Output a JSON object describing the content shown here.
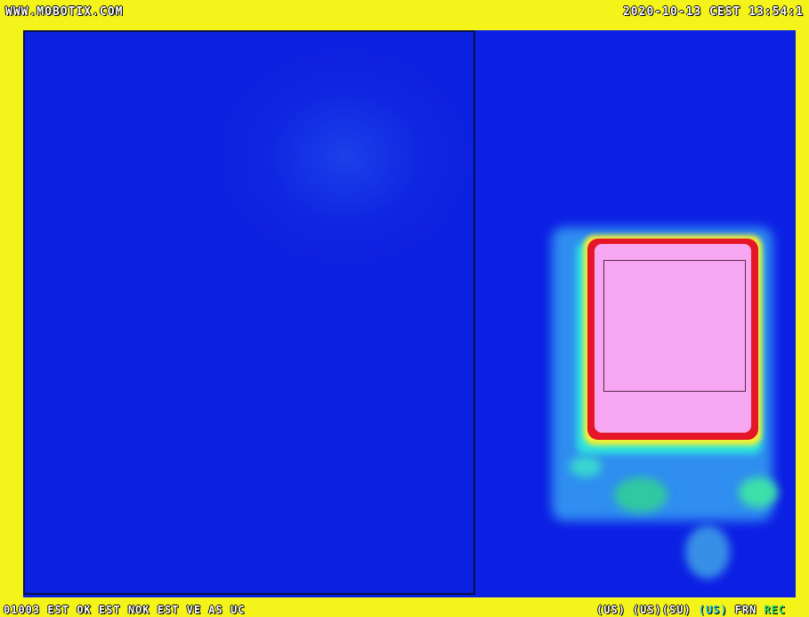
{
  "overlay": {
    "brand_url": "WWW.MOBOTIX.COM",
    "datetime": "2020-10-13 CEST 13:54:1",
    "status_left": "01003 EST OK EST NOK EST VE AS UC",
    "status_right": [
      "(US)",
      "(US)(SU)",
      "(US)",
      "FRN",
      "REC"
    ]
  },
  "colors": {
    "frame_border": "#f4f41a",
    "cold": "#0a1fe6",
    "warm": "#2ee6dd",
    "hot_edge": "#e51726",
    "hot_core": "#f7a6f2"
  }
}
